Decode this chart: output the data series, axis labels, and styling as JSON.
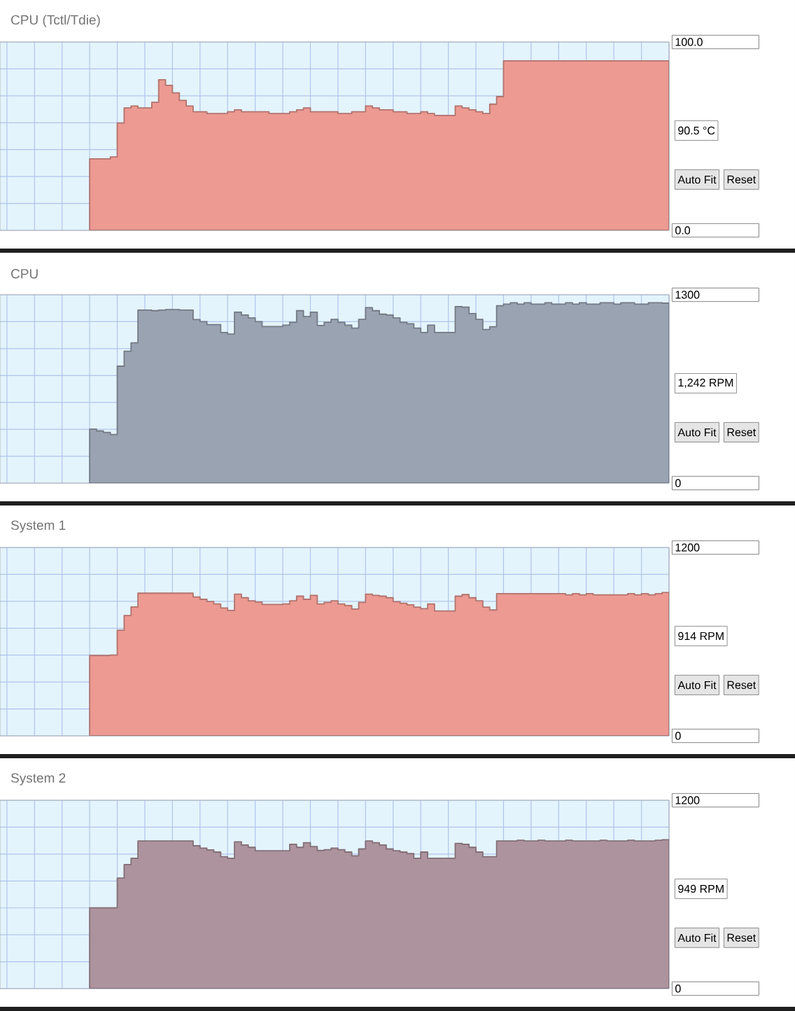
{
  "chart_data": [
    {
      "type": "area",
      "title": "CPU (Tctl/Tdie)",
      "tick_labels": "y",
      "grid": true,
      "ylim": [
        0,
        100
      ],
      "yticks": [
        {
          "value": 0,
          "label": "0.0"
        },
        {
          "value": 100,
          "label": "100.0"
        }
      ],
      "annotations": [
        "90.5 °C",
        "Auto Fit",
        "Reset"
      ],
      "categories": [
        null,
        null,
        null,
        null,
        null,
        null,
        null,
        null,
        null,
        null,
        null,
        null,
        null,
        null,
        null,
        null,
        null,
        null,
        null,
        null,
        null,
        null,
        null,
        null,
        null,
        null,
        null,
        null,
        null,
        null,
        null,
        null,
        null,
        null,
        null,
        null,
        null,
        null,
        null,
        null,
        null,
        null,
        null,
        null,
        null,
        null,
        null,
        null,
        null,
        null,
        null,
        null,
        null,
        null,
        null,
        null,
        null,
        null,
        null,
        null,
        null,
        null,
        null,
        null,
        null,
        null,
        null,
        null,
        null,
        null,
        null,
        null,
        null,
        null,
        null,
        null,
        null,
        null,
        null,
        null,
        null,
        null,
        null,
        null,
        null,
        null,
        null,
        null,
        null,
        null,
        null,
        null,
        null,
        null,
        null,
        null,
        null
      ],
      "series": [
        {
          "color": "#ec9a92",
          "values": [
            null,
            null,
            null,
            null,
            null,
            null,
            null,
            null,
            null,
            null,
            null,
            null,
            null,
            38,
            38,
            38,
            39,
            57,
            65,
            66,
            65,
            65,
            68,
            80,
            77,
            73,
            69,
            66,
            63,
            63,
            62,
            62,
            62,
            63,
            64,
            63,
            63,
            63,
            63,
            62,
            62,
            62,
            63,
            64,
            65,
            63,
            63,
            63,
            63,
            62,
            62,
            63,
            63,
            66,
            65,
            64,
            64,
            63,
            63,
            62,
            62,
            63,
            62,
            61,
            61,
            61,
            66,
            65,
            64,
            63,
            62,
            67,
            71,
            90,
            90,
            90,
            90,
            90,
            90,
            90,
            90,
            90,
            90,
            90,
            90,
            90,
            90,
            90,
            90,
            90,
            90,
            90,
            90,
            90,
            90,
            90,
            90
          ]
        }
      ]
    },
    {
      "type": "area",
      "title": "CPU",
      "tick_labels": "y",
      "grid": true,
      "ylim": [
        0,
        1300
      ],
      "yticks": [
        0,
        1300
      ],
      "annotations": [
        "1,242 RPM",
        "Auto Fit",
        "Reset"
      ],
      "categories": [
        null,
        null,
        null,
        null,
        null,
        null,
        null,
        null,
        null,
        null,
        null,
        null,
        null,
        null,
        null,
        null,
        null,
        null,
        null,
        null,
        null,
        null,
        null,
        null,
        null,
        null,
        null,
        null,
        null,
        null,
        null,
        null,
        null,
        null,
        null,
        null,
        null,
        null,
        null,
        null,
        null,
        null,
        null,
        null,
        null,
        null,
        null,
        null,
        null,
        null,
        null,
        null,
        null,
        null,
        null,
        null,
        null,
        null,
        null,
        null,
        null,
        null,
        null,
        null,
        null,
        null,
        null,
        null,
        null,
        null,
        null,
        null,
        null,
        null,
        null,
        null,
        null,
        null,
        null,
        null,
        null,
        null,
        null,
        null,
        null,
        null,
        null,
        null,
        null,
        null,
        null,
        null,
        null,
        null,
        null,
        null,
        null
      ],
      "series": [
        {
          "color": "#9aa3b2",
          "values": [
            null,
            null,
            null,
            null,
            null,
            null,
            null,
            null,
            null,
            null,
            null,
            null,
            null,
            373,
            360,
            350,
            335,
            807,
            910,
            968,
            1194,
            1194,
            1190,
            1194,
            1198,
            1198,
            1194,
            1194,
            1129,
            1115,
            1094,
            1094,
            1040,
            1029,
            1180,
            1160,
            1140,
            1115,
            1081,
            1081,
            1081,
            1090,
            1110,
            1190,
            1150,
            1180,
            1088,
            1110,
            1130,
            1110,
            1090,
            1070,
            1130,
            1211,
            1190,
            1166,
            1160,
            1140,
            1110,
            1100,
            1070,
            1040,
            1090,
            1040,
            1040,
            1040,
            1218,
            1215,
            1170,
            1130,
            1060,
            1080,
            1225,
            1235,
            1245,
            1235,
            1245,
            1235,
            1235,
            1245,
            1235,
            1235,
            1245,
            1235,
            1245,
            1235,
            1235,
            1245,
            1245,
            1235,
            1245,
            1245,
            1235,
            1235,
            1245,
            1245,
            1242
          ]
        }
      ]
    },
    {
      "type": "area",
      "title": "System 1",
      "tick_labels": "y",
      "grid": true,
      "ylim": [
        0,
        1200
      ],
      "yticks": [
        0,
        1200
      ],
      "annotations": [
        "914 RPM",
        "Auto Fit",
        "Reset"
      ],
      "categories": [
        null,
        null,
        null,
        null,
        null,
        null,
        null,
        null,
        null,
        null,
        null,
        null,
        null,
        null,
        null,
        null,
        null,
        null,
        null,
        null,
        null,
        null,
        null,
        null,
        null,
        null,
        null,
        null,
        null,
        null,
        null,
        null,
        null,
        null,
        null,
        null,
        null,
        null,
        null,
        null,
        null,
        null,
        null,
        null,
        null,
        null,
        null,
        null,
        null,
        null,
        null,
        null,
        null,
        null,
        null,
        null,
        null,
        null,
        null,
        null,
        null,
        null,
        null,
        null,
        null,
        null,
        null,
        null,
        null,
        null,
        null,
        null,
        null,
        null,
        null,
        null,
        null,
        null,
        null,
        null,
        null,
        null,
        null,
        null,
        null,
        null,
        null,
        null,
        null,
        null,
        null,
        null,
        null,
        null,
        null,
        null,
        null
      ],
      "series": [
        {
          "color": "#ec9a92",
          "values": [
            null,
            null,
            null,
            null,
            null,
            null,
            null,
            null,
            null,
            null,
            null,
            null,
            null,
            512,
            512,
            512,
            515,
            673,
            767,
            821,
            909,
            909,
            909,
            909,
            909,
            909,
            909,
            909,
            885,
            870,
            856,
            840,
            815,
            799,
            903,
            880,
            860,
            853,
            837,
            837,
            837,
            840,
            860,
            890,
            870,
            895,
            840,
            850,
            860,
            840,
            830,
            808,
            850,
            903,
            895,
            890,
            880,
            855,
            845,
            835,
            820,
            810,
            840,
            796,
            796,
            796,
            890,
            900,
            880,
            860,
            820,
            802,
            906,
            906,
            906,
            906,
            906,
            906,
            906,
            906,
            906,
            906,
            898,
            906,
            898,
            906,
            898,
            898,
            898,
            898,
            898,
            906,
            898,
            906,
            898,
            906,
            914
          ]
        }
      ]
    },
    {
      "type": "area",
      "title": "System 2",
      "tick_labels": "y",
      "grid": true,
      "ylim": [
        0,
        1200
      ],
      "yticks": [
        0,
        1200
      ],
      "annotations": [
        "949 RPM",
        "Auto Fit",
        "Reset"
      ],
      "categories": [
        null,
        null,
        null,
        null,
        null,
        null,
        null,
        null,
        null,
        null,
        null,
        null,
        null,
        null,
        null,
        null,
        null,
        null,
        null,
        null,
        null,
        null,
        null,
        null,
        null,
        null,
        null,
        null,
        null,
        null,
        null,
        null,
        null,
        null,
        null,
        null,
        null,
        null,
        null,
        null,
        null,
        null,
        null,
        null,
        null,
        null,
        null,
        null,
        null,
        null,
        null,
        null,
        null,
        null,
        null,
        null,
        null,
        null,
        null,
        null,
        null,
        null,
        null,
        null,
        null,
        null,
        null,
        null,
        null,
        null,
        null,
        null,
        null,
        null,
        null,
        null,
        null,
        null,
        null,
        null,
        null,
        null,
        null,
        null,
        null,
        null,
        null,
        null,
        null,
        null,
        null,
        null,
        null,
        null,
        null,
        null,
        null
      ],
      "series": [
        {
          "color": "#ad939d",
          "values": [
            null,
            null,
            null,
            null,
            null,
            null,
            null,
            null,
            null,
            null,
            null,
            null,
            null,
            515,
            515,
            515,
            515,
            704,
            790,
            830,
            941,
            941,
            941,
            941,
            941,
            941,
            941,
            941,
            910,
            895,
            884,
            870,
            840,
            830,
            935,
            915,
            900,
            878,
            878,
            878,
            878,
            878,
            920,
            900,
            930,
            905,
            880,
            885,
            895,
            885,
            870,
            846,
            890,
            941,
            930,
            915,
            890,
            878,
            870,
            860,
            830,
            870,
            830,
            830,
            830,
            830,
            925,
            920,
            900,
            870,
            840,
            840,
            941,
            941,
            941,
            945,
            941,
            941,
            945,
            941,
            941,
            941,
            945,
            941,
            941,
            941,
            941,
            945,
            941,
            941,
            941,
            945,
            941,
            941,
            941,
            945,
            949
          ]
        }
      ]
    }
  ]
}
